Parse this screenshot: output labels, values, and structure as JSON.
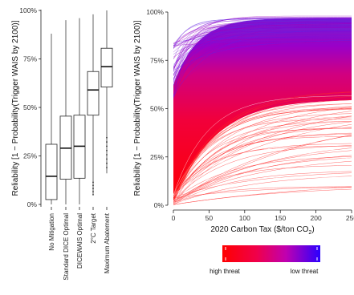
{
  "chart_data": [
    {
      "type": "box",
      "ylabel": "Reliability [1 − Probability(Trigger WAIS by 2100)]",
      "yticks": [
        "0%",
        "25%",
        "50%",
        "75%",
        "100%"
      ],
      "ylim": [
        0,
        100
      ],
      "categories": [
        "No Mitigation",
        "Standard DICE Optimal",
        "DICEWAIS Optimal",
        "2°C Target",
        "Maximum Abatement"
      ],
      "boxes": [
        {
          "min": 0.0,
          "q1": 2.5,
          "median": 14.5,
          "q3": 31.0,
          "max": 88.0
        },
        {
          "min": 0.0,
          "q1": 13.0,
          "median": 29.0,
          "q3": 45.5,
          "max": 95.0
        },
        {
          "min": 0.0,
          "q1": 13.5,
          "median": 30.0,
          "q3": 46.0,
          "max": 96.0
        },
        {
          "min": 5.0,
          "q1": 46.0,
          "median": 59.0,
          "q3": 68.5,
          "max": 98.0
        },
        {
          "min": 16.0,
          "q1": 60.5,
          "median": 71.0,
          "q3": 80.5,
          "max": 100.0
        }
      ]
    },
    {
      "type": "line",
      "xlabel": "2020 Carbon Tax ($/ton CO",
      "xlabel_sub": "2",
      "xlabel_end": ")",
      "ylabel": "Reliability [1 − Probability(Trigger WAIS by 2100)]",
      "xticks": [
        "0",
        "50",
        "100",
        "150",
        "200",
        "250"
      ],
      "xlim": [
        0,
        250
      ],
      "yticks": [
        "0%",
        "25%",
        "50%",
        "75%",
        "100%"
      ],
      "ylim": [
        0,
        100
      ],
      "series_description": "ensemble of reliability curves versus carbon tax, colored by threat level",
      "colorbar": {
        "low_label": "high threat",
        "high_label": "low threat",
        "colors": [
          "#ff0000",
          "#e6007a",
          "#b300cc",
          "#2a00ff"
        ]
      }
    }
  ]
}
